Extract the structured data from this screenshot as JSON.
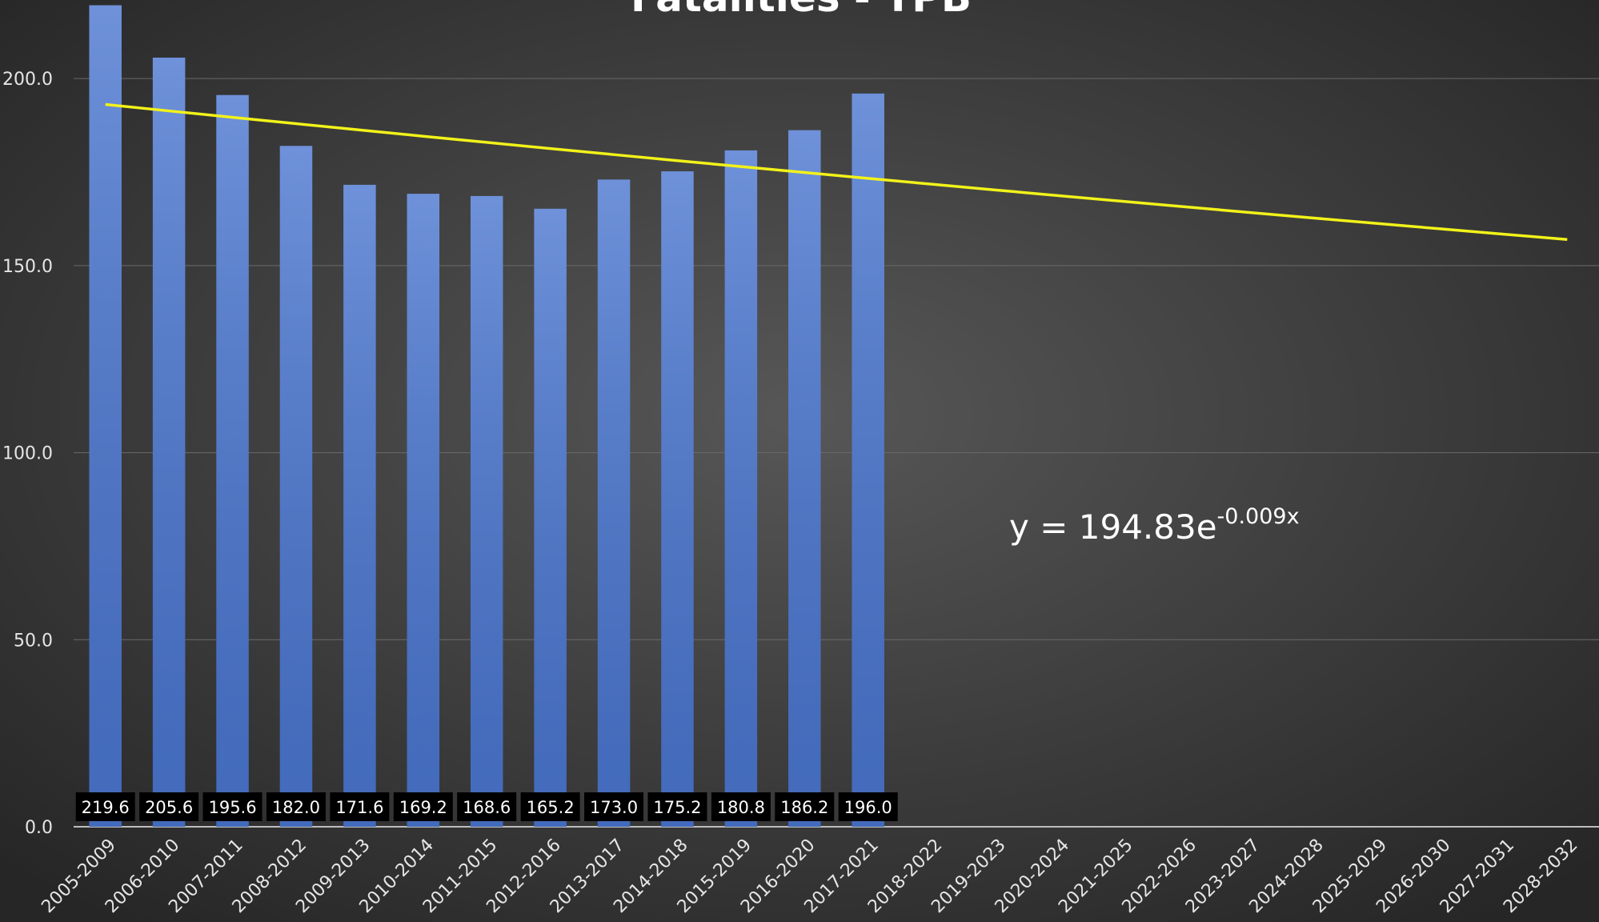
{
  "chart_data": {
    "type": "bar",
    "title": "Fatalities - TPB",
    "categories": [
      "2005-2009",
      "2006-2010",
      "2007-2011",
      "2008-2012",
      "2009-2013",
      "2010-2014",
      "2011-2015",
      "2012-2016",
      "2013-2017",
      "2014-2018",
      "2015-2019",
      "2016-2020",
      "2017-2021",
      "2018-2022",
      "2019-2023",
      "2020-2024",
      "2021-2025",
      "2022-2026",
      "2023-2027",
      "2024-2028",
      "2025-2029",
      "2026-2030",
      "2027-2031",
      "2028-2032"
    ],
    "values": [
      219.6,
      205.6,
      195.6,
      182,
      171.6,
      169.2,
      168.6,
      165.2,
      173,
      175.2,
      180.8,
      186.2,
      196,
      null,
      null,
      null,
      null,
      null,
      null,
      null,
      null,
      null,
      null,
      null
    ],
    "value_labels": [
      "219.6",
      "205.6",
      "195.6",
      "182.0",
      "171.6",
      "169.2",
      "168.6",
      "165.2",
      "173.0",
      "175.2",
      "180.8",
      "186.2",
      "196.0",
      null,
      null,
      null,
      null,
      null,
      null,
      null,
      null,
      null,
      null,
      null
    ],
    "color": "#4a76d0",
    "ylim": [
      0,
      221
    ],
    "yticks": [
      {
        "value": 0,
        "label": "0.0"
      },
      {
        "value": 50,
        "label": "50.0"
      },
      {
        "value": 100,
        "label": "100.0"
      },
      {
        "value": 150,
        "label": "150.0"
      },
      {
        "value": 200,
        "label": "200.0"
      }
    ],
    "grid": true,
    "trendline": {
      "type": "exponential",
      "color": "#f2f21a",
      "label": "y = 194.83e",
      "exponent": "-0.009x"
    }
  }
}
